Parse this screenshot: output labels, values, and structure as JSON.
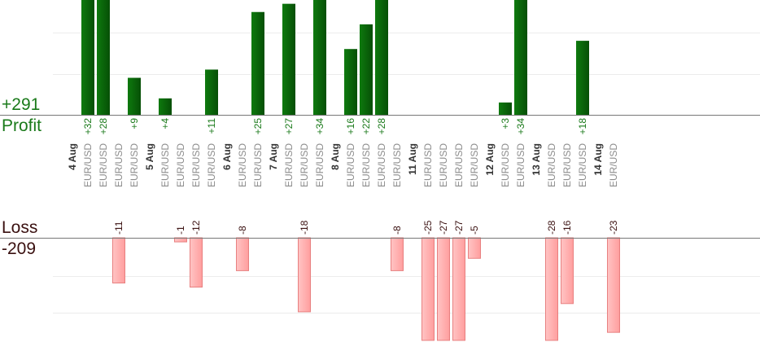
{
  "summary": {
    "profit_total": "+291",
    "profit_label": "Profit",
    "loss_label": "Loss",
    "loss_total": "-209"
  },
  "colors": {
    "profit_bar": "#0b6b0b",
    "profit_text": "#1a7a1a",
    "loss_bar": "#ffb3b3",
    "loss_border": "#e88080",
    "loss_text": "#3a1010",
    "day_text": "#333333",
    "instrument_text": "#8c8c8c"
  },
  "chart_data": {
    "type": "bar",
    "instrument": "EUR/USD",
    "days": [
      {
        "label": "4 Aug",
        "trades": [
          32,
          28,
          -11,
          9
        ]
      },
      {
        "label": "5 Aug",
        "trades": [
          4,
          -1,
          -12,
          11
        ]
      },
      {
        "label": "6 Aug",
        "trades": [
          -8,
          25
        ]
      },
      {
        "label": "7 Aug",
        "trades": [
          27,
          -18,
          34
        ]
      },
      {
        "label": "8 Aug",
        "trades": [
          16,
          22,
          28,
          -8
        ]
      },
      {
        "label": "11 Aug",
        "trades": [
          -25,
          -27,
          -27,
          -5
        ]
      },
      {
        "label": "12 Aug",
        "trades": [
          3,
          34
        ]
      },
      {
        "label": "13 Aug",
        "trades": [
          -28,
          -16,
          18
        ]
      },
      {
        "label": "14 Aug",
        "trades": [
          -23
        ]
      }
    ],
    "y_profit_max": 28,
    "y_loss_max": 28,
    "grid": true
  }
}
